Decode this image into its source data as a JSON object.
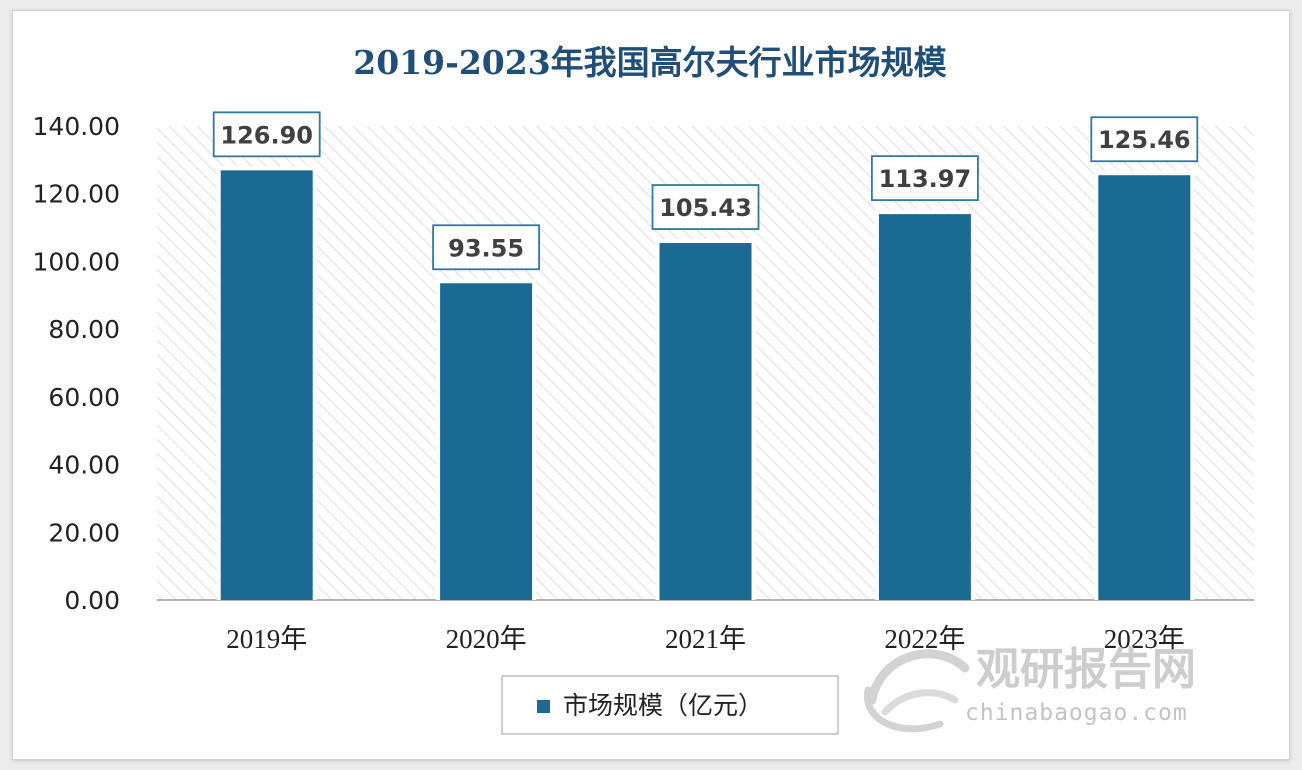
{
  "chart_data": {
    "type": "bar",
    "title": "2019-2023年我国高尔夫行业市场规模",
    "categories": [
      "2019年",
      "2020年",
      "2021年",
      "2022年",
      "2023年"
    ],
    "series": [
      {
        "name": "市场规模（亿元）",
        "values": [
          126.9,
          93.55,
          105.43,
          113.97,
          125.46
        ],
        "color": "#1b6a94"
      }
    ],
    "data_labels": [
      "126.90",
      "93.55",
      "105.43",
      "113.97",
      "125.46"
    ],
    "ylim": [
      0,
      140
    ],
    "yticks": [
      "0.00",
      "20.00",
      "40.00",
      "60.00",
      "80.00",
      "100.00",
      "120.00",
      "140.00"
    ],
    "xlabel": "",
    "ylabel": "",
    "legend_position": "bottom",
    "plot_background": "diagonal hatch",
    "grid": false
  },
  "watermark": {
    "logo_text": "观研报告网",
    "url_text": "chinabaogao.com"
  },
  "colors": {
    "bar": "#1b6a94",
    "title": "#1f4e79",
    "label_border": "#2e7aa0"
  }
}
